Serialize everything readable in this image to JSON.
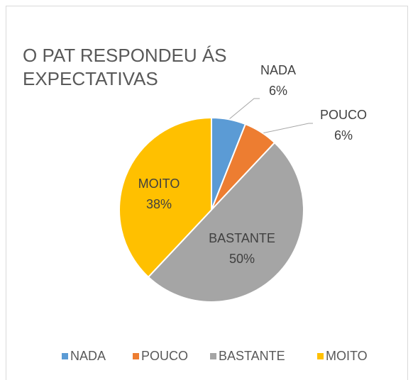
{
  "chart_data": {
    "type": "pie",
    "title": "O PAT RESPONDEU ÁS EXPECTATIVAS",
    "categories": [
      "NADA",
      "POUCO",
      "BASTANTE",
      "MOITO"
    ],
    "values": [
      6,
      6,
      50,
      38
    ],
    "value_labels": [
      "6%",
      "6%",
      "50%",
      "38%"
    ],
    "colors": [
      "#5B9BD5",
      "#ED7D31",
      "#A5A5A5",
      "#FFC000"
    ],
    "legend": "bottom"
  }
}
